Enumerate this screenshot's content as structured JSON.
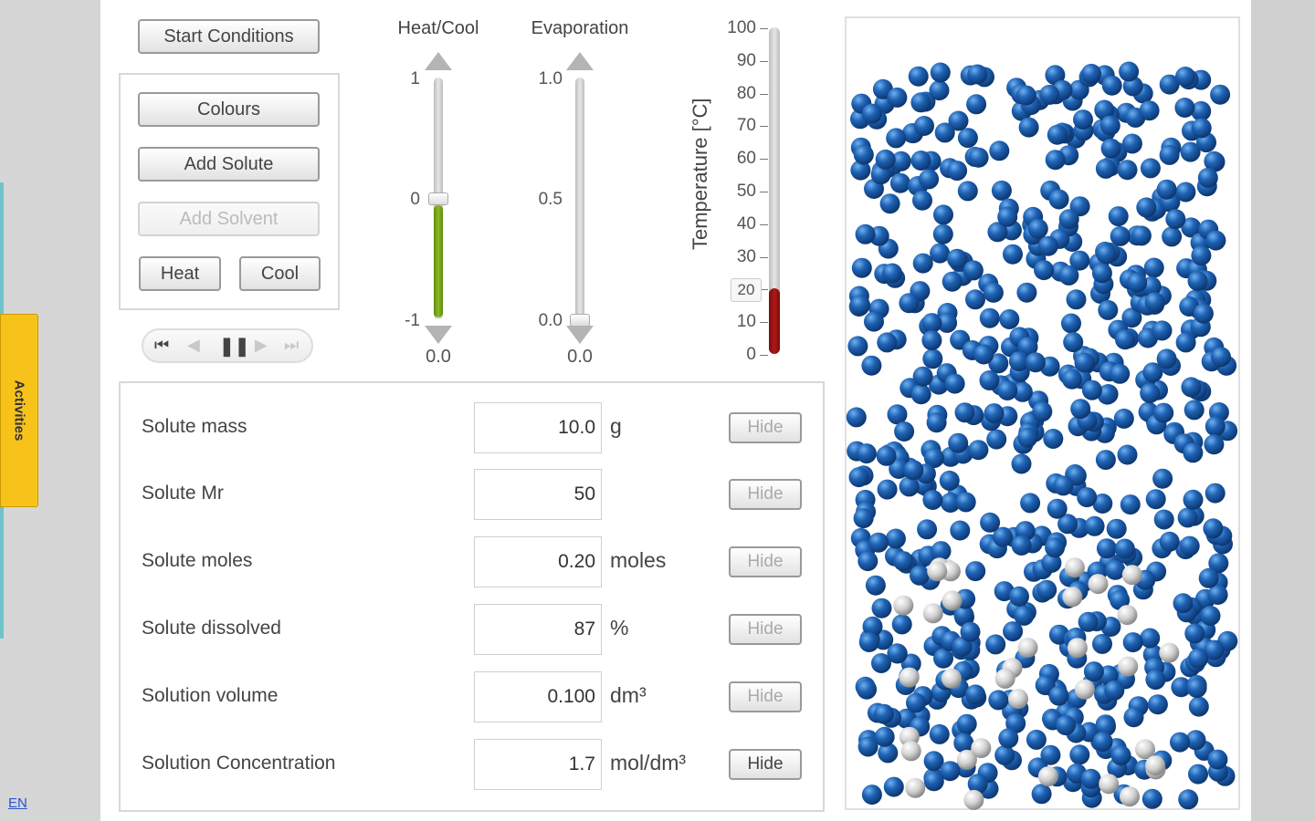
{
  "side": {
    "activities_label": "Activities",
    "language": "EN"
  },
  "controls": {
    "start_conditions": "Start Conditions",
    "colours": "Colours",
    "add_solute": "Add Solute",
    "add_solvent": "Add Solvent",
    "heat": "Heat",
    "cool": "Cool"
  },
  "player": {
    "first": "⏮",
    "back": "◀",
    "pause": "❚❚",
    "forward": "▶",
    "last": "⏭"
  },
  "heat_cool": {
    "title": "Heat/Cool",
    "ticks": [
      "1",
      "0",
      "-1"
    ],
    "readout": "0.0",
    "value": -0.0
  },
  "evaporation": {
    "title": "Evaporation",
    "ticks": [
      "1.0",
      "0.5",
      "0.0"
    ],
    "readout": "0.0",
    "value": 0.0
  },
  "thermometer": {
    "label": "Temperature [°C]",
    "ticks": [
      "100",
      "90",
      "80",
      "70",
      "60",
      "50",
      "40",
      "30",
      "20",
      "10",
      "0"
    ],
    "current": "20",
    "value": 20,
    "max": 100,
    "fill_color": "#b01818"
  },
  "measurements": {
    "hide_label": "Hide",
    "rows": [
      {
        "label": "Solute mass",
        "value": "10.0",
        "unit": "g"
      },
      {
        "label": "Solute Mr",
        "value": "50",
        "unit": ""
      },
      {
        "label": "Solute moles",
        "value": "0.20",
        "unit": "moles"
      },
      {
        "label": "Solute dissolved",
        "value": "87",
        "unit": "%"
      },
      {
        "label": "Solution volume",
        "value": "0.100",
        "unit": "dm³"
      },
      {
        "label": "Solution Concentration",
        "value": "1.7",
        "unit": "mol/dm³"
      }
    ]
  },
  "simulation": {
    "solvent_color": "#1f63b5",
    "solute_color": "#cfcfcf"
  }
}
